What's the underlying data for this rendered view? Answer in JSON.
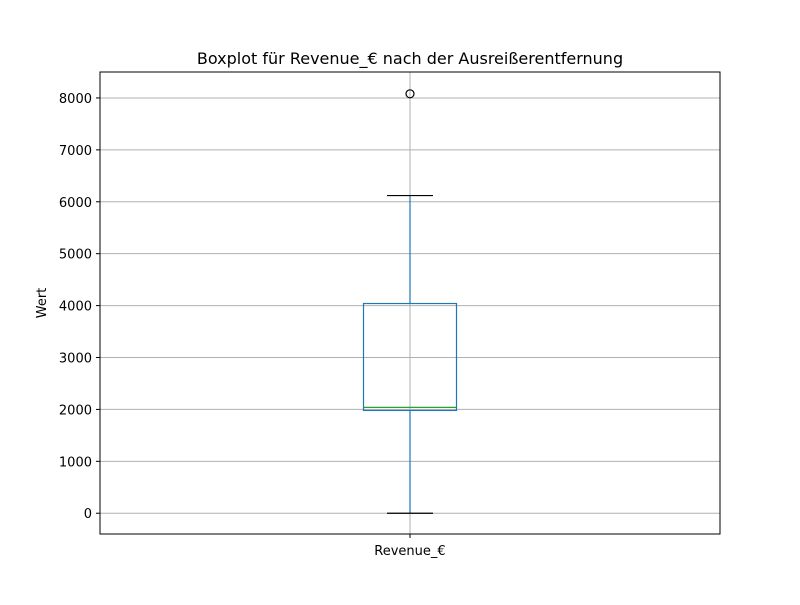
{
  "chart_data": {
    "type": "boxplot",
    "title": "Boxplot für Revenue_€ nach der Ausreißerentfernung",
    "xlabel": "",
    "ylabel": "Wert",
    "categories": [
      "Revenue_€"
    ],
    "ylim": [
      -400,
      8500
    ],
    "yticks": [
      0,
      1000,
      2000,
      3000,
      4000,
      5000,
      6000,
      7000,
      8000
    ],
    "grid": true,
    "boxes": [
      {
        "category": "Revenue_€",
        "whisker_low": 0,
        "q1": 1980,
        "median": 2040,
        "q3": 4040,
        "whisker_high": 6120,
        "outliers": [
          8080
        ]
      }
    ],
    "colors": {
      "box": "#1f77b4",
      "median": "#2ca02c",
      "whisker": "#1f77b4",
      "cap": "#000000",
      "outlier": "#000000",
      "grid": "#b0b0b0"
    }
  }
}
